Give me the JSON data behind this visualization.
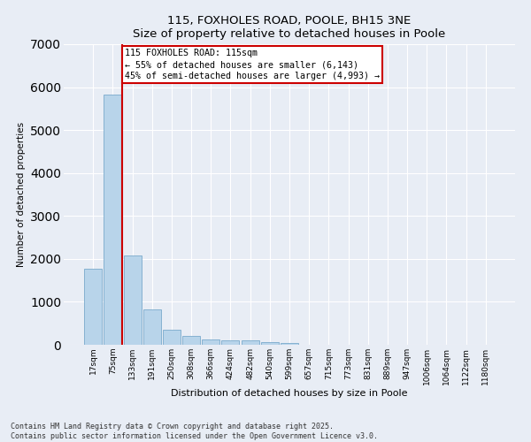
{
  "title": "115, FOXHOLES ROAD, POOLE, BH15 3NE",
  "subtitle": "Size of property relative to detached houses in Poole",
  "xlabel": "Distribution of detached houses by size in Poole",
  "ylabel": "Number of detached properties",
  "categories": [
    "17sqm",
    "75sqm",
    "133sqm",
    "191sqm",
    "250sqm",
    "308sqm",
    "366sqm",
    "424sqm",
    "482sqm",
    "540sqm",
    "599sqm",
    "657sqm",
    "715sqm",
    "773sqm",
    "831sqm",
    "889sqm",
    "947sqm",
    "1006sqm",
    "1064sqm",
    "1122sqm",
    "1180sqm"
  ],
  "values": [
    1780,
    5820,
    2080,
    820,
    360,
    210,
    130,
    100,
    100,
    70,
    50,
    0,
    0,
    0,
    0,
    0,
    0,
    0,
    0,
    0,
    0
  ],
  "bar_color": "#b8d4ea",
  "bar_edge_color": "#7aaacc",
  "vline_x": 1.5,
  "vline_color": "#cc0000",
  "annotation_line1": "115 FOXHOLES ROAD: 115sqm",
  "annotation_line2": "← 55% of detached houses are smaller (6,143)",
  "annotation_line3": "45% of semi-detached houses are larger (4,993) →",
  "box_color": "#cc0000",
  "ylim": [
    0,
    7000
  ],
  "yticks": [
    0,
    1000,
    2000,
    3000,
    4000,
    5000,
    6000,
    7000
  ],
  "bg_color": "#e8edf5",
  "grid_color": "#ffffff",
  "footer_line1": "Contains HM Land Registry data © Crown copyright and database right 2025.",
  "footer_line2": "Contains public sector information licensed under the Open Government Licence v3.0."
}
